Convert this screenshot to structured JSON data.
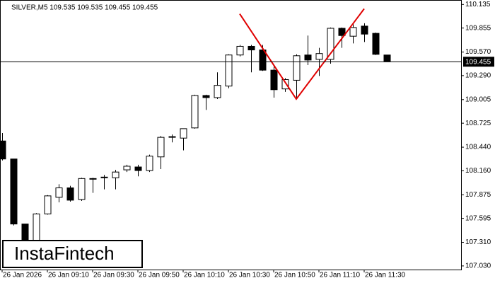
{
  "chart_data": {
    "type": "candlestick",
    "title": "SILVER,M5  109.535 109.535 109.455 109.455",
    "logo": "InstaFintech",
    "categories": [
      "26 Jan 2026",
      null,
      null,
      null,
      "26 Jan 09:10",
      null,
      null,
      null,
      "26 Jan 09:30",
      null,
      null,
      null,
      "26 Jan 09:50",
      null,
      null,
      null,
      "26 Jan 10:10",
      null,
      null,
      null,
      "26 Jan 10:30",
      null,
      null,
      null,
      "26 Jan 10:50",
      null,
      null,
      null,
      "26 Jan 11:10",
      null,
      null,
      null,
      "26 Jan 11:30",
      null,
      null
    ],
    "open": [
      108.514,
      108.3,
      107.528,
      107.296,
      107.648,
      107.845,
      107.957,
      107.819,
      108.06,
      108.077,
      108.077,
      108.171,
      108.205,
      108.163,
      108.325,
      108.557,
      108.548,
      108.669,
      109.054,
      109.029,
      109.166,
      109.535,
      109.638,
      109.595,
      109.355,
      109.132,
      109.235,
      109.535,
      109.483,
      109.483,
      109.852,
      109.758,
      109.878,
      109.792,
      109.535
    ],
    "high": [
      108.608,
      108.3,
      107.528,
      107.657,
      107.871,
      108.0,
      107.982,
      108.077,
      108.077,
      108.111,
      108.171,
      108.231,
      108.231,
      108.351,
      108.574,
      108.591,
      108.66,
      109.063,
      109.063,
      109.329,
      109.543,
      109.655,
      109.655,
      109.655,
      109.397,
      109.26,
      109.543,
      109.766,
      109.62,
      109.861,
      109.861,
      109.912,
      109.912,
      109.801,
      109.535
    ],
    "low": [
      108.283,
      107.511,
      107.168,
      107.253,
      107.639,
      107.785,
      107.794,
      107.802,
      107.897,
      107.94,
      107.94,
      108.145,
      108.094,
      108.145,
      108.18,
      108.497,
      108.403,
      108.66,
      108.883,
      109.012,
      109.14,
      109.518,
      109.329,
      109.346,
      109.029,
      109.097,
      109.012,
      109.415,
      109.286,
      109.432,
      109.62,
      109.672,
      109.689,
      109.535,
      109.455
    ],
    "close": [
      108.3,
      107.528,
      107.253,
      107.648,
      107.862,
      107.957,
      107.811,
      108.068,
      108.068,
      108.085,
      108.145,
      108.214,
      108.163,
      108.334,
      108.557,
      108.566,
      108.66,
      109.054,
      109.029,
      109.174,
      109.535,
      109.638,
      109.595,
      109.355,
      109.123,
      109.243,
      109.526,
      109.475,
      109.552,
      109.852,
      109.766,
      109.861,
      109.783,
      109.543,
      109.455
    ],
    "current_price": 109.455,
    "pattern": {
      "color": "#e00000",
      "x": [
        21,
        26,
        32
      ],
      "values": [
        110.024,
        109.012,
        110.084
      ]
    },
    "ylim": [
      106.987,
      110.188
    ],
    "yticks": [
      110.135,
      109.855,
      {
        "value": 109.57,
        "label": "109.570"
      },
      {
        "value": 109.29,
        "label": "109.290"
      },
      109.005,
      108.725,
      {
        "value": 108.44,
        "label": "108.440"
      },
      {
        "value": 108.16,
        "label": "108.160"
      },
      107.875,
      107.595,
      {
        "value": 107.31,
        "label": "107.310"
      },
      {
        "value": 107.03,
        "label": "107.030"
      }
    ]
  }
}
